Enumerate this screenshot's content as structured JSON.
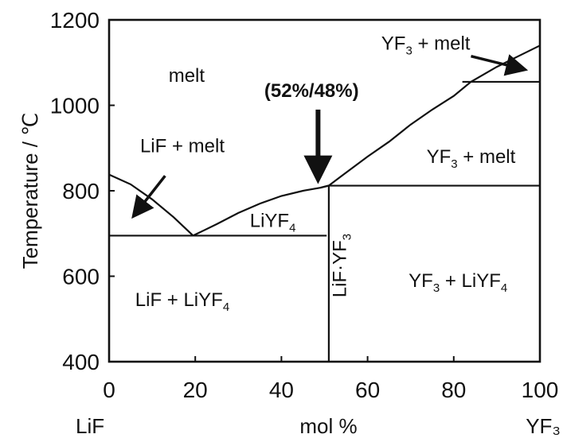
{
  "chart_data": {
    "type": "line",
    "title": "",
    "xlabel": "mol %",
    "ylabel": "Temperature / ℃",
    "x_end_labels": {
      "left": "LiF",
      "right": "YF₃"
    },
    "xlim": [
      0,
      100
    ],
    "ylim": [
      400,
      1200
    ],
    "x_ticks": [
      0,
      20,
      40,
      60,
      80,
      100
    ],
    "y_ticks": [
      400,
      600,
      800,
      1000,
      1200
    ],
    "grid": false,
    "series": [
      {
        "values": [
          [
            0,
            838
          ],
          [
            5,
            815
          ],
          [
            10,
            780
          ],
          [
            15,
            738
          ],
          [
            19.5,
            695
          ]
        ]
      },
      {
        "values": [
          [
            19.5,
            695
          ],
          [
            25,
            722
          ],
          [
            30,
            748
          ],
          [
            35,
            770
          ],
          [
            40,
            788
          ],
          [
            45,
            800
          ],
          [
            49,
            807
          ],
          [
            51,
            812
          ]
        ]
      },
      {
        "values": [
          [
            49,
            807
          ],
          [
            51,
            812
          ],
          [
            54,
            835
          ],
          [
            60,
            880
          ],
          [
            65,
            915
          ],
          [
            70,
            955
          ],
          [
            75,
            990
          ],
          [
            80,
            1022
          ],
          [
            84,
            1055
          ],
          [
            90,
            1090
          ],
          [
            95,
            1115
          ],
          [
            100,
            1140
          ]
        ]
      }
    ],
    "horizontal_lines": [
      {
        "y": 695,
        "x_start": 0,
        "x_end": 50.5
      },
      {
        "y": 812,
        "x_start": 51,
        "x_end": 100
      },
      {
        "y": 1055,
        "x_start": 82,
        "x_end": 100
      }
    ],
    "vertical_lines": [
      {
        "x": 51,
        "y_start": 400,
        "y_end": 812
      }
    ],
    "region_labels": [
      {
        "name": "melt",
        "x": 18,
        "y": 1055
      },
      {
        "name": "LiF + melt",
        "x": 17,
        "y": 890
      },
      {
        "name": "LiYF",
        "sub": "4",
        "x": 38,
        "y": 715
      },
      {
        "name": "YF",
        "sub": "3",
        "suffix": " + melt",
        "x": 84,
        "y": 865
      },
      {
        "name": "LiF + LiYF",
        "sub": "4",
        "x": 17,
        "y": 530
      },
      {
        "name": "YF",
        "sub": "3",
        "suffix": " + LiYF",
        "sub2": "4",
        "x": 81,
        "y": 575
      },
      {
        "name": "YF",
        "sub": "3",
        "suffix": " + melt",
        "x": 73.5,
        "y": 1130
      }
    ],
    "vertical_label": {
      "text": "LiF·YF",
      "sub": "3",
      "x": 55,
      "y": 625
    },
    "annotations": [
      {
        "text": "(52%/48%)",
        "x": 47,
        "y": 1020,
        "bold": true
      },
      {
        "arrow": true,
        "from": [
          48.5,
          990
        ],
        "to": [
          48.5,
          838
        ],
        "bold": true
      },
      {
        "arrow": true,
        "from": [
          13,
          835
        ],
        "to": [
          6,
          745
        ]
      },
      {
        "arrow": true,
        "from": [
          84,
          1115
        ],
        "to": [
          96,
          1085
        ]
      }
    ]
  }
}
